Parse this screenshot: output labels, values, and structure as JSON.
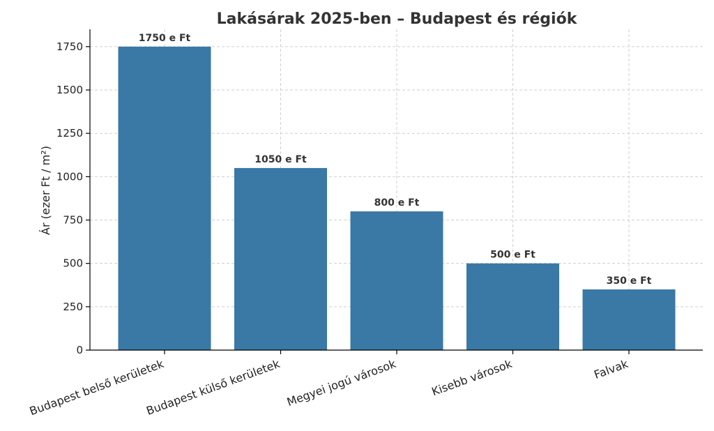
{
  "chart_data": {
    "type": "bar",
    "title": "Lakásárak 2025-ben – Budapest és régiók",
    "xlabel": "",
    "ylabel": "Ár (ezer Ft / m²)",
    "categories": [
      "Budapest belső kerületek",
      "Budapest külső kerületek",
      "Megyei jogú városok",
      "Kisebb városok",
      "Falvak"
    ],
    "values": [
      1750,
      1050,
      800,
      500,
      350
    ],
    "data_labels": [
      "1750 e Ft",
      "1050 e Ft",
      "800 e Ft",
      "500 e Ft",
      "350 e Ft"
    ],
    "ylim": [
      0,
      1850
    ],
    "yticks": [
      0,
      250,
      500,
      750,
      1000,
      1250,
      1500,
      1750
    ],
    "grid": true,
    "colors": {
      "bar": "#3a78a6"
    }
  }
}
